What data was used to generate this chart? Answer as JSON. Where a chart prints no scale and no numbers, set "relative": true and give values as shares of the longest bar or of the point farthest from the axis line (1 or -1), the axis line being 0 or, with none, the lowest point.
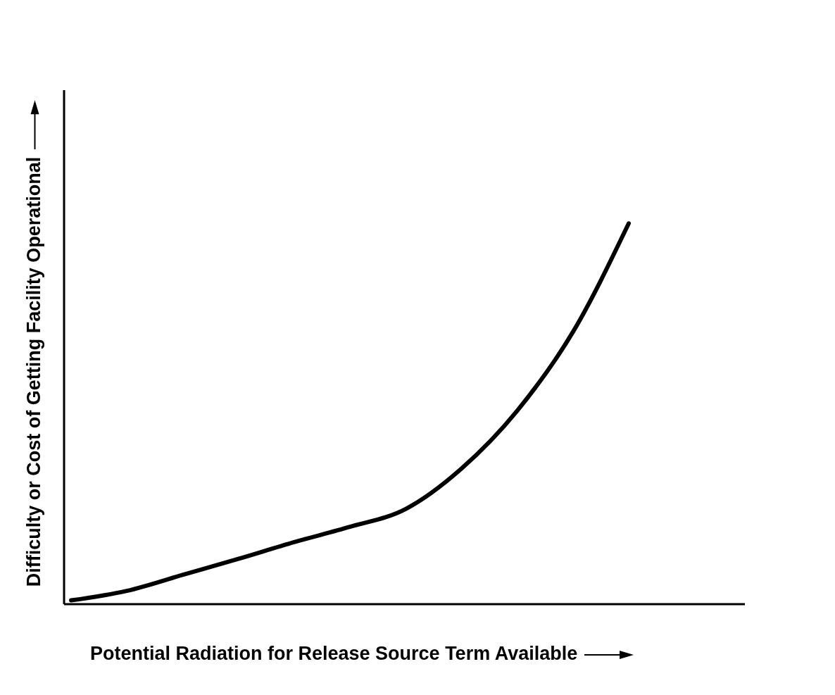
{
  "chart_data": {
    "type": "line",
    "relative": true,
    "xlabel": "Potential Radiation for Release Source Term Available",
    "ylabel": "Difficulty or Cost of Getting Facility Operational",
    "categories": [
      null,
      null,
      null,
      null,
      null,
      null,
      null,
      null,
      null,
      null,
      null
    ],
    "series": [
      {
        "color": "#000000",
        "values": [
          0.01,
          0.035,
          0.077,
          0.119,
          0.163,
          0.203,
          0.25,
          0.356,
          0.508,
          0.715,
          1
        ]
      }
    ],
    "marker": "none",
    "line_style": "solid",
    "grid": false,
    "legend": false
  }
}
